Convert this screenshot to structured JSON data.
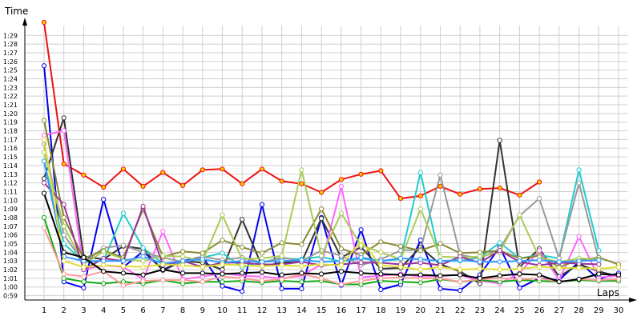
{
  "chart_data": {
    "type": "line",
    "ylabel": "Time",
    "xlabel": "Laps",
    "x": [
      1,
      2,
      3,
      4,
      5,
      6,
      7,
      8,
      9,
      10,
      11,
      12,
      13,
      14,
      15,
      16,
      17,
      18,
      19,
      20,
      21,
      22,
      23,
      24,
      25,
      26,
      27,
      28,
      29,
      30
    ],
    "ylim": [
      "0:58.5",
      "1:30.5"
    ],
    "yticks": [
      "0:59",
      "1:00",
      "1:01",
      "1:02",
      "1:03",
      "1:04",
      "1:05",
      "1:06",
      "1:07",
      "1:08",
      "1:09",
      "1:10",
      "1:11",
      "1:12",
      "1:13",
      "1:14",
      "1:15",
      "1:16",
      "1:17",
      "1:18",
      "1:19",
      "1:20",
      "1:21",
      "1:22",
      "1:23",
      "1:24",
      "1:25",
      "1:26",
      "1:27",
      "1:28",
      "1:29"
    ],
    "xticks": [
      "1",
      "2",
      "3",
      "4",
      "5",
      "6",
      "7",
      "8",
      "9",
      "10",
      "11",
      "12",
      "13",
      "14",
      "15",
      "16",
      "17",
      "18",
      "19",
      "20",
      "21",
      "22",
      "23",
      "24",
      "25",
      "26",
      "27",
      "28",
      "29",
      "30"
    ],
    "grid": true,
    "legend": "none",
    "series": [
      {
        "color": "#ee1111",
        "marker_fill": "#ffcc00",
        "values": [
          "1:30.5",
          "1:14.2",
          "1:12.9",
          "1:11.5",
          "1:13.6",
          "1:11.6",
          "1:13.2",
          "1:11.7",
          "1:13.5",
          "1:13.6",
          "1:11.9",
          "1:13.6",
          "1:12.2",
          "1:11.9",
          "1:10.9",
          "1:12.4",
          "1:13.0",
          "1:13.4",
          "1:10.2",
          "1:10.5",
          "1:11.6",
          "1:10.7",
          "1:11.3",
          "1:11.4",
          "1:10.6",
          "1:12.1",
          null,
          null,
          null,
          null
        ]
      },
      {
        "color": "#0000ee",
        "marker_fill": "#ffffff",
        "values": [
          "1:25.5",
          "1:00.6",
          "0:59.9",
          "1:10.1",
          "1:02.3",
          "1:04.1",
          "1:02.0",
          "1:03.0",
          "1:03.5",
          "1:00.1",
          "0:59.5",
          "1:09.5",
          "0:59.8",
          "0:59.8",
          "1:08.0",
          "1:00.2",
          "1:06.6",
          "0:59.7",
          "1:00.3",
          "1:05.4",
          "0:59.8",
          "0:59.6",
          "1:01.4",
          "1:04.6",
          "0:59.9",
          "1:01.0",
          "1:00.8",
          "1:02.9",
          "1:00.9",
          "1:01.6"
        ]
      },
      {
        "color": "#333333",
        "marker_fill": "#ffffff",
        "values": [
          "1:12.5",
          "1:19.5",
          "1:03.5",
          "1:03.2",
          "1:04.7",
          "1:04.4",
          "1:01.9",
          "1:03.0",
          "1:02.8",
          "1:02.0",
          "1:07.8",
          "1:02.4",
          "1:02.8",
          "1:02.9",
          "1:07.9",
          "1:03.4",
          "1:04.6",
          "1:02.1",
          "1:02.2",
          "1:04.6",
          "1:02.6",
          "1:01.8",
          "1:00.4",
          "1:16.9",
          "1:02.3",
          "1:04.4",
          "1:01.2",
          "1:02.6",
          "1:01.8",
          "1:01.2"
        ]
      },
      {
        "color": "#22cccc",
        "marker_fill": "#ffffff",
        "values": [
          "1:14.5",
          "1:05.0",
          "1:02.9",
          "1:03.0",
          "1:08.5",
          "1:04.5",
          "1:02.7",
          "1:02.8",
          "1:03.4",
          "1:03.9",
          "1:02.3",
          "1:02.9",
          "1:03.3",
          "1:03.2",
          "1:03.5",
          "1:02.9",
          "1:03.3",
          "1:03.0",
          "1:03.2",
          "1:13.2",
          "1:03.0",
          "1:03.0",
          "1:03.4",
          "1:05.1",
          "1:03.3",
          "1:03.7",
          "1:03.3",
          "1:13.5",
          "1:04.2",
          null
        ]
      },
      {
        "color": "#ff66ff",
        "marker_fill": "#ffffff",
        "values": [
          "1:17.5",
          "1:18.0",
          "1:02.0",
          "1:02.5",
          "1:02.3",
          "1:00.9",
          "1:06.4",
          "1:00.9",
          "1:01.2",
          "1:01.6",
          "1:01.3",
          "1:01.2",
          "1:01.0",
          "1:01.3",
          "1:02.6",
          "1:11.6",
          "1:01.1",
          "1:01.3",
          "1:01.5",
          "1:01.2",
          "1:01.3",
          "1:01.4",
          "1:00.7",
          "1:00.4",
          "1:01.6",
          "1:04.2",
          "1:00.8",
          "1:05.8",
          "1:01.1",
          "1:01.3"
        ]
      },
      {
        "color": "#999999",
        "marker_fill": "#ffffff",
        "values": [
          "1:16.5",
          "1:06.0",
          "1:02.8",
          "1:04.5",
          "1:04.8",
          "1:04.0",
          "1:03.4",
          "1:02.9",
          "1:03.5",
          "1:03.1",
          "1:03.4",
          "1:02.8",
          "1:03.4",
          "1:03.0",
          "1:04.2",
          "1:03.6",
          "1:02.5",
          "1:03.2",
          "1:04.2",
          "1:04.3",
          "1:12.9",
          "1:03.7",
          "1:03.3",
          "1:04.4",
          "1:08.2",
          "1:10.2",
          "1:03.3",
          "1:12.0",
          "1:03.1",
          null
        ]
      },
      {
        "color": "#888833",
        "marker_fill": "#ffffff",
        "values": [
          "1:19.2",
          "1:08.0",
          "1:03.3",
          "1:04.2",
          "1:03.4",
          "1:09.0",
          "1:03.5",
          "1:04.1",
          "1:03.9",
          "1:05.4",
          "1:04.6",
          "1:03.9",
          "1:05.1",
          "1:04.9",
          "1:09.0",
          "1:04.4",
          "1:03.7",
          "1:05.2",
          "1:04.7",
          "1:04.2",
          "1:05.0",
          "1:03.9",
          "1:04.0",
          "1:04.2",
          "1:03.3",
          "1:03.6",
          "1:02.3",
          "1:03.1",
          "1:03.4",
          "1:02.6"
        ]
      },
      {
        "color": "#aacc55",
        "marker_fill": "#ffffff",
        "values": [
          "1:15.5",
          "1:07.0",
          "1:02.6",
          "1:04.1",
          "1:03.2",
          "1:03.0",
          "1:03.6",
          "1:03.5",
          "1:03.0",
          "1:08.3",
          "1:03.2",
          "1:03.3",
          "1:03.6",
          "1:13.5",
          "1:03.6",
          "1:08.5",
          "1:04.8",
          "1:04.0",
          "1:03.2",
          "1:09.0",
          "1:03.5",
          "1:03.4",
          "1:03.5",
          "1:04.0",
          "1:08.3",
          "1:03.4",
          "1:02.9",
          "1:03.3",
          "1:03.2",
          null
        ]
      },
      {
        "color": "#11aa11",
        "marker_fill": "#ffffff",
        "values": [
          "1:08.0",
          "1:01.0",
          "1:00.6",
          "1:00.4",
          "1:00.6",
          "1:00.4",
          "1:00.8",
          "1:00.4",
          "1:00.6",
          "1:00.6",
          "1:00.7",
          "1:00.5",
          "1:00.7",
          "1:00.6",
          "1:00.7",
          "1:00.3",
          "1:00.3",
          "1:00.7",
          "1:00.6",
          "1:00.5",
          "1:00.9",
          "1:00.6",
          "1:00.8",
          "1:00.6",
          "1:00.8",
          "1:00.7",
          "1:00.6",
          "1:00.8",
          "1:00.7",
          "1:00.7"
        ]
      },
      {
        "color": "#993399",
        "marker_fill": "#ffffff",
        "values": [
          "1:12.0",
          "1:09.5",
          "1:02.0",
          "1:03.3",
          "1:03.0",
          "1:09.3",
          "1:02.5",
          "1:03.0",
          "1:02.3",
          "1:02.8",
          "1:02.8",
          "1:02.6",
          "1:02.6",
          "1:02.9",
          "1:02.5",
          "1:02.6",
          "1:02.8",
          "1:02.8",
          "1:02.6",
          "1:02.8",
          "1:02.5",
          "1:03.5",
          "1:02.8",
          "1:04.2",
          "1:02.9",
          "1:02.5",
          "1:02.8",
          "1:02.7",
          "1:02.6",
          null
        ]
      },
      {
        "color": "#3399ff",
        "marker_fill": "#ffffff",
        "values": [
          "1:14.5",
          "1:03.5",
          "1:03.0",
          "1:03.0",
          "1:03.0",
          "1:03.5",
          "1:02.7",
          "1:03.0",
          "1:03.2",
          "1:02.8",
          "1:03.0",
          "1:02.9",
          "1:03.0",
          "1:03.1",
          "1:02.9",
          "1:03.0",
          "1:03.4",
          "1:03.0",
          "1:03.3",
          "1:03.2",
          "1:03.0",
          "1:03.1",
          "1:02.9",
          "1:02.9",
          "1:03.0",
          "1:03.1",
          "1:02.9",
          "1:03.0",
          "1:03.1",
          null
        ]
      },
      {
        "color": "#ff9999",
        "marker_fill": "#ffffff",
        "values": [
          "1:06.8",
          "1:01.5",
          "1:01.2",
          "1:01.8",
          "1:00.2",
          "1:00.7",
          "1:00.8",
          "1:00.8",
          "1:00.6",
          "1:01.2",
          "1:01.0",
          "1:00.7",
          "1:00.9",
          "1:01.5",
          "1:01.0",
          "1:00.3",
          "1:00.7",
          "1:01.0",
          "1:01.1",
          "1:01.0",
          "1:01.0",
          "1:00.6",
          "1:00.9",
          "1:01.0",
          "1:00.9",
          "1:01.0",
          "1:00.6",
          "1:00.9",
          "1:00.8",
          "1:00.9"
        ]
      },
      {
        "color": "#dddd33",
        "marker_fill": "#ffffff",
        "values": [
          "1:17.0",
          "1:03.0",
          "1:02.3",
          "1:02.5",
          "1:02.4",
          "1:02.3",
          "1:02.6",
          "1:02.5",
          "1:02.3",
          "1:02.6",
          "1:02.5",
          "1:02.4",
          "1:02.5",
          "1:02.4",
          "1:02.6",
          "1:02.5",
          "1:05.3",
          "1:02.5",
          "1:02.3",
          "1:02.0",
          "1:02.3",
          "1:02.0",
          "1:02.1",
          "1:02.0",
          "1:02.1",
          "1:02.3",
          "1:02.2",
          "1:02.2",
          "1:02.1",
          "1:02.3"
        ]
      },
      {
        "color": "#000000",
        "marker_fill": "#ffffff",
        "values": [
          "1:10.8",
          "1:04.0",
          "1:03.4",
          "1:01.8",
          "1:01.6",
          "1:01.4",
          "1:02.0",
          "1:01.6",
          "1:01.6",
          "1:01.5",
          "1:01.6",
          "1:01.7",
          "1:01.4",
          "1:01.6",
          "1:01.5",
          "1:01.8",
          "1:01.6",
          "1:01.5",
          "1:01.4",
          "1:01.4",
          "1:01.3",
          "1:01.4",
          "1:01.0",
          "1:01.3",
          "1:01.5",
          "1:01.4",
          "1:00.6",
          "1:00.9",
          "1:01.5",
          "1:01.4"
        ]
      }
    ]
  }
}
